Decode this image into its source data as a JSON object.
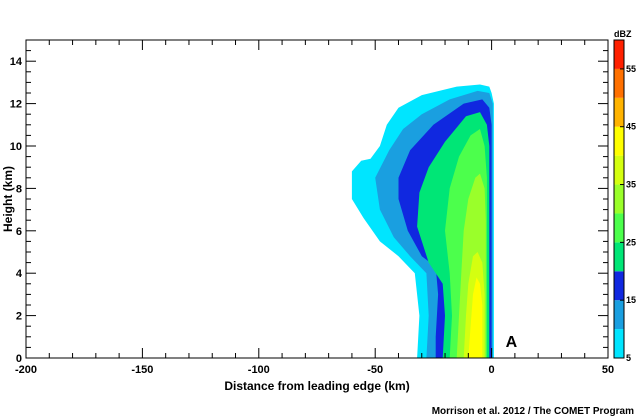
{
  "chart_data": {
    "type": "contour",
    "xlabel": "Distance from leading edge (km)",
    "ylabel": "Height (km)",
    "xlim": [
      -200,
      50
    ],
    "ylim": [
      0,
      15
    ],
    "x_ticks": [
      -200,
      -150,
      -100,
      -50,
      0,
      50
    ],
    "y_ticks": [
      0,
      2,
      4,
      6,
      8,
      10,
      12,
      14
    ],
    "grid": false,
    "annotation": {
      "text": "A",
      "x": 6,
      "y": 0.8
    },
    "colorbar": {
      "title": "dBZ",
      "range": [
        5,
        60
      ],
      "tick_labels": [
        5,
        15,
        25,
        35,
        45,
        55
      ],
      "levels": [
        {
          "min": 5,
          "max": 10,
          "color": "#00e5ff"
        },
        {
          "min": 10,
          "max": 15,
          "color": "#1a9fe0"
        },
        {
          "min": 15,
          "max": 20,
          "color": "#1028e0"
        },
        {
          "min": 20,
          "max": 25,
          "color": "#00e676"
        },
        {
          "min": 25,
          "max": 30,
          "color": "#4cff4c"
        },
        {
          "min": 30,
          "max": 35,
          "color": "#9aff2a"
        },
        {
          "min": 35,
          "max": 40,
          "color": "#d4ff10"
        },
        {
          "min": 40,
          "max": 45,
          "color": "#ffff00"
        },
        {
          "min": 45,
          "max": 50,
          "color": "#ffb300"
        },
        {
          "min": 50,
          "max": 55,
          "color": "#ff7000"
        },
        {
          "min": 55,
          "max": 60,
          "color": "#ff2000"
        }
      ]
    },
    "contours": [
      {
        "level": 5,
        "color": "#00e5ff",
        "points": [
          [
            -32,
            0
          ],
          [
            -31,
            2
          ],
          [
            -33,
            4
          ],
          [
            -40,
            4.8
          ],
          [
            -48,
            5.5
          ],
          [
            -55,
            6.6
          ],
          [
            -60,
            7.5
          ],
          [
            -60,
            8.8
          ],
          [
            -56,
            9.3
          ],
          [
            -52,
            9.4
          ],
          [
            -48,
            10
          ],
          [
            -45,
            11
          ],
          [
            -40,
            11.8
          ],
          [
            -30,
            12.4
          ],
          [
            -15,
            12.8
          ],
          [
            -5,
            12.9
          ],
          [
            -1,
            12.8
          ],
          [
            0,
            12.5
          ],
          [
            1,
            12
          ],
          [
            1,
            0
          ]
        ]
      },
      {
        "level": 10,
        "color": "#1a9fe0",
        "points": [
          [
            -28,
            0
          ],
          [
            -27,
            2
          ],
          [
            -28,
            4
          ],
          [
            -35,
            4.8
          ],
          [
            -42,
            5.7
          ],
          [
            -48,
            7
          ],
          [
            -50,
            8.5
          ],
          [
            -44,
            9.8
          ],
          [
            -38,
            10.8
          ],
          [
            -30,
            11.5
          ],
          [
            -18,
            12.2
          ],
          [
            -6,
            12.6
          ],
          [
            -1,
            12.5
          ],
          [
            0.5,
            12
          ],
          [
            0.5,
            0
          ]
        ]
      },
      {
        "level": 15,
        "color": "#1028e0",
        "points": [
          [
            -24,
            0
          ],
          [
            -24,
            1
          ],
          [
            -23,
            3
          ],
          [
            -24,
            4.3
          ],
          [
            -30,
            4.8
          ],
          [
            -36,
            6
          ],
          [
            -40,
            7.5
          ],
          [
            -40,
            8.5
          ],
          [
            -35,
            9.8
          ],
          [
            -25,
            11
          ],
          [
            -12,
            12
          ],
          [
            -4,
            12.2
          ],
          [
            -1,
            11.8
          ],
          [
            0,
            11
          ],
          [
            0,
            0
          ]
        ]
      },
      {
        "level": 20,
        "color": "#00e676",
        "points": [
          [
            -21,
            0
          ],
          [
            -20,
            2
          ],
          [
            -21,
            3.5
          ],
          [
            -27,
            4.5
          ],
          [
            -32,
            6.2
          ],
          [
            -31,
            7.8
          ],
          [
            -27,
            9
          ],
          [
            -20,
            10.2
          ],
          [
            -11,
            11.4
          ],
          [
            -5,
            11.6
          ],
          [
            -2,
            11
          ],
          [
            -1,
            10
          ],
          [
            -1,
            0
          ]
        ]
      },
      {
        "level": 25,
        "color": "#4cff4c",
        "points": [
          [
            -18,
            0
          ],
          [
            -17,
            2
          ],
          [
            -18,
            4
          ],
          [
            -20,
            6
          ],
          [
            -18,
            8
          ],
          [
            -14,
            9.5
          ],
          [
            -9,
            10.5
          ],
          [
            -5,
            10.8
          ],
          [
            -3,
            10
          ],
          [
            -2,
            8.5
          ],
          [
            -2,
            0
          ]
        ]
      },
      {
        "level": 30,
        "color": "#9aff2a",
        "points": [
          [
            -15,
            0
          ],
          [
            -14,
            2
          ],
          [
            -13,
            4
          ],
          [
            -12,
            6
          ],
          [
            -10,
            7.5
          ],
          [
            -7,
            8.5
          ],
          [
            -5,
            8.7
          ],
          [
            -3,
            8
          ],
          [
            -2.5,
            6.5
          ],
          [
            -2.5,
            0
          ]
        ]
      },
      {
        "level": 35,
        "color": "#d4ff10",
        "points": [
          [
            -12,
            0
          ],
          [
            -11,
            2
          ],
          [
            -10,
            3.5
          ],
          [
            -8,
            4.8
          ],
          [
            -6,
            5
          ],
          [
            -4,
            4.5
          ],
          [
            -3,
            3
          ],
          [
            -3,
            0
          ]
        ]
      },
      {
        "level": 40,
        "color": "#ffff00",
        "points": [
          [
            -10,
            0
          ],
          [
            -9,
            1.5
          ],
          [
            -8,
            3
          ],
          [
            -6.5,
            3.8
          ],
          [
            -5,
            3.5
          ],
          [
            -4,
            2.5
          ],
          [
            -4,
            0
          ]
        ]
      }
    ]
  },
  "credit": "Morrison et al. 2012 / The COMET Program"
}
